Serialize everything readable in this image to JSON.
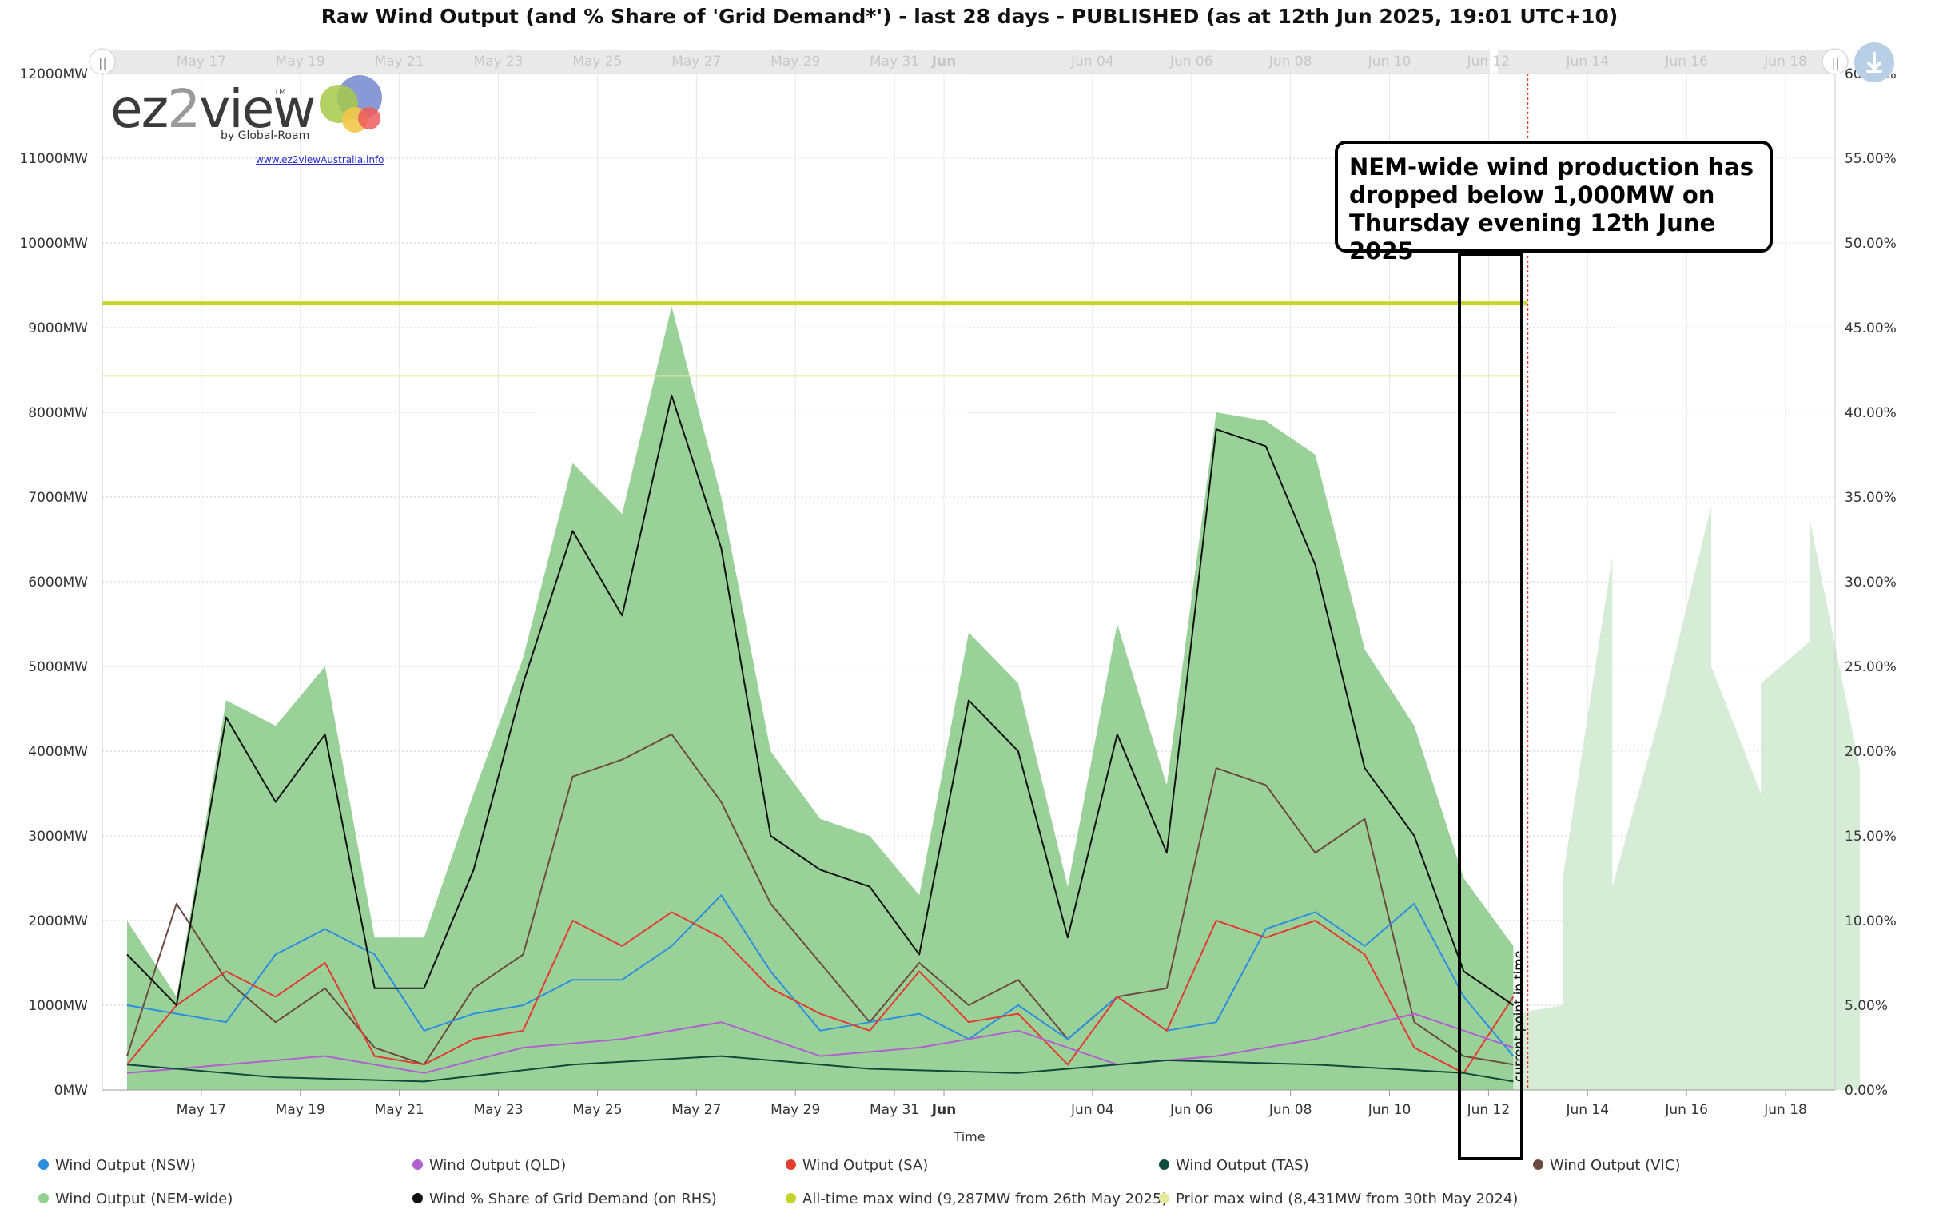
{
  "title": "Raw Wind Output (and % Share of 'Grid Demand*') - last 28 days - PUBLISHED (as at 12th Jun 2025, 19:01 UTC+10)",
  "logo": {
    "word": "ez2view",
    "tm": "TM",
    "by": "by Global-Roam",
    "url": "www.ez2viewAustralia.info"
  },
  "annotation": "NEM-wide wind production has dropped below 1,000MW on Thursday evening 12th June 2025",
  "current_point_label": "current point in time",
  "download_icon": "download-arrow-icon",
  "chart_data": {
    "type": "area",
    "xlabel": "Time",
    "x_ticks": [
      "May 17",
      "May 19",
      "May 21",
      "May 23",
      "May 25",
      "May 27",
      "May 29",
      "May 31",
      "Jun",
      "Jun 04",
      "Jun 06",
      "Jun 08",
      "Jun 10",
      "Jun 12",
      "Jun 14",
      "Jun 16",
      "Jun 18"
    ],
    "x_range_days": [
      "2025-05-15",
      "2025-06-19"
    ],
    "current_time": "2025-06-12 19:01",
    "ylim_left": [
      0,
      12000
    ],
    "y_ticks_left": [
      "0MW",
      "1000MW",
      "2000MW",
      "3000MW",
      "4000MW",
      "5000MW",
      "6000MW",
      "7000MW",
      "8000MW",
      "9000MW",
      "10000MW",
      "11000MW",
      "12000MW"
    ],
    "ylim_right": [
      0,
      60
    ],
    "y_ticks_right": [
      "0.00%",
      "5.00%",
      "10.00%",
      "15.00%",
      "20.00%",
      "25.00%",
      "30.00%",
      "35.00%",
      "40.00%",
      "45.00%",
      "50.00%",
      "55.00%",
      "60.00%"
    ],
    "grid": true,
    "legend_position": "bottom",
    "reference_lines": [
      {
        "name": "All-time max wind (9,287MW from 26th May 2025)",
        "value": 9287,
        "color": "#c6d42b"
      },
      {
        "name": "Prior max wind (8,431MW from 30th May 2024)",
        "value": 8431,
        "color": "#e3ea9a"
      }
    ],
    "series": [
      {
        "name": "Wind Output (NSW)",
        "color": "#2b8fe0",
        "x": [
          "2025-05-15",
          "2025-05-17",
          "2025-05-18",
          "2025-05-19",
          "2025-05-20",
          "2025-05-21",
          "2025-05-22",
          "2025-05-23",
          "2025-05-24",
          "2025-05-25",
          "2025-05-26",
          "2025-05-27",
          "2025-05-28",
          "2025-05-29",
          "2025-05-30",
          "2025-05-31",
          "2025-06-01",
          "2025-06-02",
          "2025-06-03",
          "2025-06-04",
          "2025-06-05",
          "2025-06-06",
          "2025-06-07",
          "2025-06-08",
          "2025-06-09",
          "2025-06-10",
          "2025-06-11",
          "2025-06-12"
        ],
        "values": [
          1000,
          800,
          1600,
          1900,
          1600,
          700,
          900,
          1000,
          1300,
          1300,
          1700,
          2300,
          1400,
          700,
          800,
          900,
          600,
          1000,
          600,
          1100,
          700,
          800,
          1900,
          2100,
          1700,
          2200,
          1100,
          400
        ]
      },
      {
        "name": "Wind Output (QLD)",
        "color": "#b160d0",
        "x": [
          "2025-05-15",
          "2025-05-17",
          "2025-05-19",
          "2025-05-21",
          "2025-05-23",
          "2025-05-25",
          "2025-05-27",
          "2025-05-29",
          "2025-05-31",
          "2025-06-02",
          "2025-06-04",
          "2025-06-06",
          "2025-06-08",
          "2025-06-10",
          "2025-06-12"
        ],
        "values": [
          200,
          300,
          400,
          200,
          500,
          600,
          800,
          400,
          500,
          700,
          300,
          400,
          600,
          900,
          500
        ]
      },
      {
        "name": "Wind Output (SA)",
        "color": "#e33b2e",
        "x": [
          "2025-05-15",
          "2025-05-16",
          "2025-05-17",
          "2025-05-18",
          "2025-05-19",
          "2025-05-20",
          "2025-05-21",
          "2025-05-22",
          "2025-05-23",
          "2025-05-24",
          "2025-05-25",
          "2025-05-26",
          "2025-05-27",
          "2025-05-28",
          "2025-05-29",
          "2025-05-30",
          "2025-05-31",
          "2025-06-01",
          "2025-06-02",
          "2025-06-03",
          "2025-06-04",
          "2025-06-05",
          "2025-06-06",
          "2025-06-07",
          "2025-06-08",
          "2025-06-09",
          "2025-06-10",
          "2025-06-11",
          "2025-06-12"
        ],
        "values": [
          300,
          1000,
          1400,
          1100,
          1500,
          400,
          300,
          600,
          700,
          2000,
          1700,
          2100,
          1800,
          1200,
          900,
          700,
          1400,
          800,
          900,
          300,
          1100,
          700,
          2000,
          1800,
          2000,
          1600,
          500,
          200,
          1100
        ]
      },
      {
        "name": "Wind Output (TAS)",
        "color": "#0f4a3a",
        "x": [
          "2025-05-15",
          "2025-05-18",
          "2025-05-21",
          "2025-05-24",
          "2025-05-27",
          "2025-05-30",
          "2025-06-02",
          "2025-06-05",
          "2025-06-08",
          "2025-06-11",
          "2025-06-12"
        ],
        "values": [
          300,
          150,
          100,
          300,
          400,
          250,
          200,
          350,
          300,
          200,
          100
        ]
      },
      {
        "name": "Wind Output (VIC)",
        "color": "#6d4a3f",
        "x": [
          "2025-05-15",
          "2025-05-16",
          "2025-05-17",
          "2025-05-18",
          "2025-05-19",
          "2025-05-20",
          "2025-05-21",
          "2025-05-22",
          "2025-05-23",
          "2025-05-24",
          "2025-05-25",
          "2025-05-26",
          "2025-05-27",
          "2025-05-28",
          "2025-05-29",
          "2025-05-30",
          "2025-05-31",
          "2025-06-01",
          "2025-06-02",
          "2025-06-03",
          "2025-06-04",
          "2025-06-05",
          "2025-06-06",
          "2025-06-07",
          "2025-06-08",
          "2025-06-09",
          "2025-06-10",
          "2025-06-11",
          "2025-06-12"
        ],
        "values": [
          400,
          2200,
          1300,
          800,
          1200,
          500,
          300,
          1200,
          1600,
          3700,
          3900,
          4200,
          3400,
          2200,
          1500,
          800,
          1500,
          1000,
          1300,
          600,
          1100,
          1200,
          3800,
          3600,
          2800,
          3200,
          800,
          400,
          300
        ]
      },
      {
        "name": "Wind Output (NEM-wide)",
        "color": "#93cf93",
        "x": [
          "2025-05-15",
          "2025-05-16",
          "2025-05-17",
          "2025-05-18",
          "2025-05-19",
          "2025-05-20",
          "2025-05-21",
          "2025-05-22",
          "2025-05-23",
          "2025-05-24",
          "2025-05-25",
          "2025-05-26",
          "2025-05-27",
          "2025-05-28",
          "2025-05-29",
          "2025-05-30",
          "2025-05-31",
          "2025-06-01",
          "2025-06-02",
          "2025-06-03",
          "2025-06-04",
          "2025-06-05",
          "2025-06-06",
          "2025-06-07",
          "2025-06-08",
          "2025-06-09",
          "2025-06-10",
          "2025-06-11",
          "2025-06-12"
        ],
        "values": [
          2000,
          1100,
          4600,
          4300,
          5000,
          1800,
          1800,
          3500,
          5100,
          7400,
          6800,
          9250,
          7000,
          4000,
          3200,
          3000,
          2300,
          5400,
          4800,
          2400,
          5500,
          3600,
          8000,
          7900,
          7500,
          5200,
          4300,
          2500,
          1700
        ]
      },
      {
        "name": "Wind % Share of Grid Demand (on RHS)",
        "color": "#111111",
        "axis": "right",
        "x": [
          "2025-05-15",
          "2025-05-16",
          "2025-05-17",
          "2025-05-18",
          "2025-05-19",
          "2025-05-20",
          "2025-05-21",
          "2025-05-22",
          "2025-05-23",
          "2025-05-24",
          "2025-05-25",
          "2025-05-26",
          "2025-05-27",
          "2025-05-28",
          "2025-05-29",
          "2025-05-30",
          "2025-05-31",
          "2025-06-01",
          "2025-06-02",
          "2025-06-03",
          "2025-06-04",
          "2025-06-05",
          "2025-06-06",
          "2025-06-07",
          "2025-06-08",
          "2025-06-09",
          "2025-06-10",
          "2025-06-11",
          "2025-06-12"
        ],
        "values": [
          8.0,
          5.0,
          22.0,
          17.0,
          21.0,
          6.0,
          6.0,
          13.0,
          24.0,
          33.0,
          28.0,
          41.0,
          32.0,
          15.0,
          13.0,
          12.0,
          8.0,
          23.0,
          20.0,
          9.0,
          21.0,
          14.0,
          39.0,
          38.0,
          31.0,
          19.0,
          15.0,
          7.0,
          5.0
        ]
      },
      {
        "name": "Forecast wind output",
        "legend": false,
        "color": "#d6ecd6",
        "x": [
          "2025-06-12",
          "2025-06-13",
          "2025-06-13",
          "2025-06-14",
          "2025-06-14",
          "2025-06-15",
          "2025-06-16",
          "2025-06-16",
          "2025-06-17",
          "2025-06-17",
          "2025-06-18",
          "2025-06-18",
          "2025-06-19"
        ],
        "values": [
          900,
          1000,
          2500,
          6300,
          2400,
          4500,
          6900,
          5000,
          3500,
          4800,
          5300,
          6700,
          3800
        ]
      }
    ]
  },
  "legend": [
    {
      "label": "Wind Output (NSW)",
      "color": "#2b8fe0"
    },
    {
      "label": "Wind Output (QLD)",
      "color": "#b160d0"
    },
    {
      "label": "Wind Output (SA)",
      "color": "#e33b2e"
    },
    {
      "label": "Wind Output (TAS)",
      "color": "#0f4a3a"
    },
    {
      "label": "Wind Output (VIC)",
      "color": "#6d4a3f"
    },
    {
      "label": "Wind Output (NEM-wide)",
      "color": "#93cf93"
    },
    {
      "label": "Wind % Share of Grid Demand (on RHS)",
      "color": "#111111"
    },
    {
      "label": "All-time max wind (9,287MW from 26th May 2025)",
      "color": "#c6d42b"
    },
    {
      "label": "Prior max wind (8,431MW from 30th May 2024)",
      "color": "#e3ea9a"
    }
  ]
}
